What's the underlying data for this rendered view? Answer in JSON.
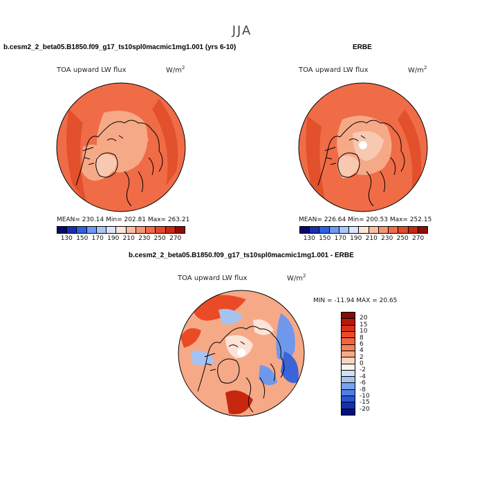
{
  "figure": {
    "suptitle": "JJA"
  },
  "panels": [
    {
      "title": "b.cesm2_2_beta05.B1850.f09_g17_ts10spl0macmic1mg1.001 (yrs 6-10)",
      "variable": "TOA upward LW flux",
      "units_base": "W/m",
      "units_exp": "2",
      "stats": "MEAN= 230.14   Min= 202.81   Max= 263.21"
    },
    {
      "title": "ERBE",
      "variable": "TOA upward LW flux",
      "units_base": "W/m",
      "units_exp": "2",
      "stats": "MEAN= 226.64   Min= 200.53   Max= 252.15"
    },
    {
      "title": "b.cesm2_2_beta05.B1850.f09_g17_ts10spl0macmic1mg1.001 - ERBE",
      "variable": "TOA upward LW flux",
      "units_base": "W/m",
      "units_exp": "2",
      "stats": "MIN = -11.94  MAX =  20.65"
    }
  ],
  "colorbar_abs": {
    "labels": [
      "130",
      "150",
      "170",
      "190",
      "210",
      "230",
      "250",
      "270"
    ],
    "colors": [
      "#08086b",
      "#1a2fb0",
      "#2f5fe0",
      "#6f98f0",
      "#a9c6f8",
      "#dbe6fb",
      "#fbe4d6",
      "#f9bea3",
      "#f69572",
      "#f06b48",
      "#e34a2a",
      "#c62a12",
      "#8f0d05"
    ]
  },
  "colorbar_diff": {
    "labels": [
      "20",
      "15",
      "10",
      "8",
      "6",
      "4",
      "2",
      "0",
      "-2",
      "-4",
      "-6",
      "-8",
      "-10",
      "-15",
      "-20"
    ],
    "colors": [
      "#8a0a04",
      "#b4190b",
      "#d83216",
      "#ea4b26",
      "#f2653c",
      "#f48457",
      "#f6a987",
      "#f9d4c1",
      "#fbf3ee",
      "#cfe0f7",
      "#a6c2f1",
      "#7aa2ec",
      "#4f7fe3",
      "#2a56d4",
      "#1131b0",
      "#04127a"
    ]
  },
  "map_colors": {
    "abs_base": "#ef6c47",
    "abs_light": "#f6a987",
    "abs_lighter": "#f9c8b0",
    "abs_dark": "#e3502c",
    "diff_base": "#f6a987",
    "diff_light": "#fbe3d6",
    "diff_blue_light": "#a6c2f1",
    "diff_blue": "#6f98ec",
    "diff_blue_dark": "#3a64d8",
    "diff_red": "#ea4b26",
    "diff_red_dark": "#c8270f"
  }
}
